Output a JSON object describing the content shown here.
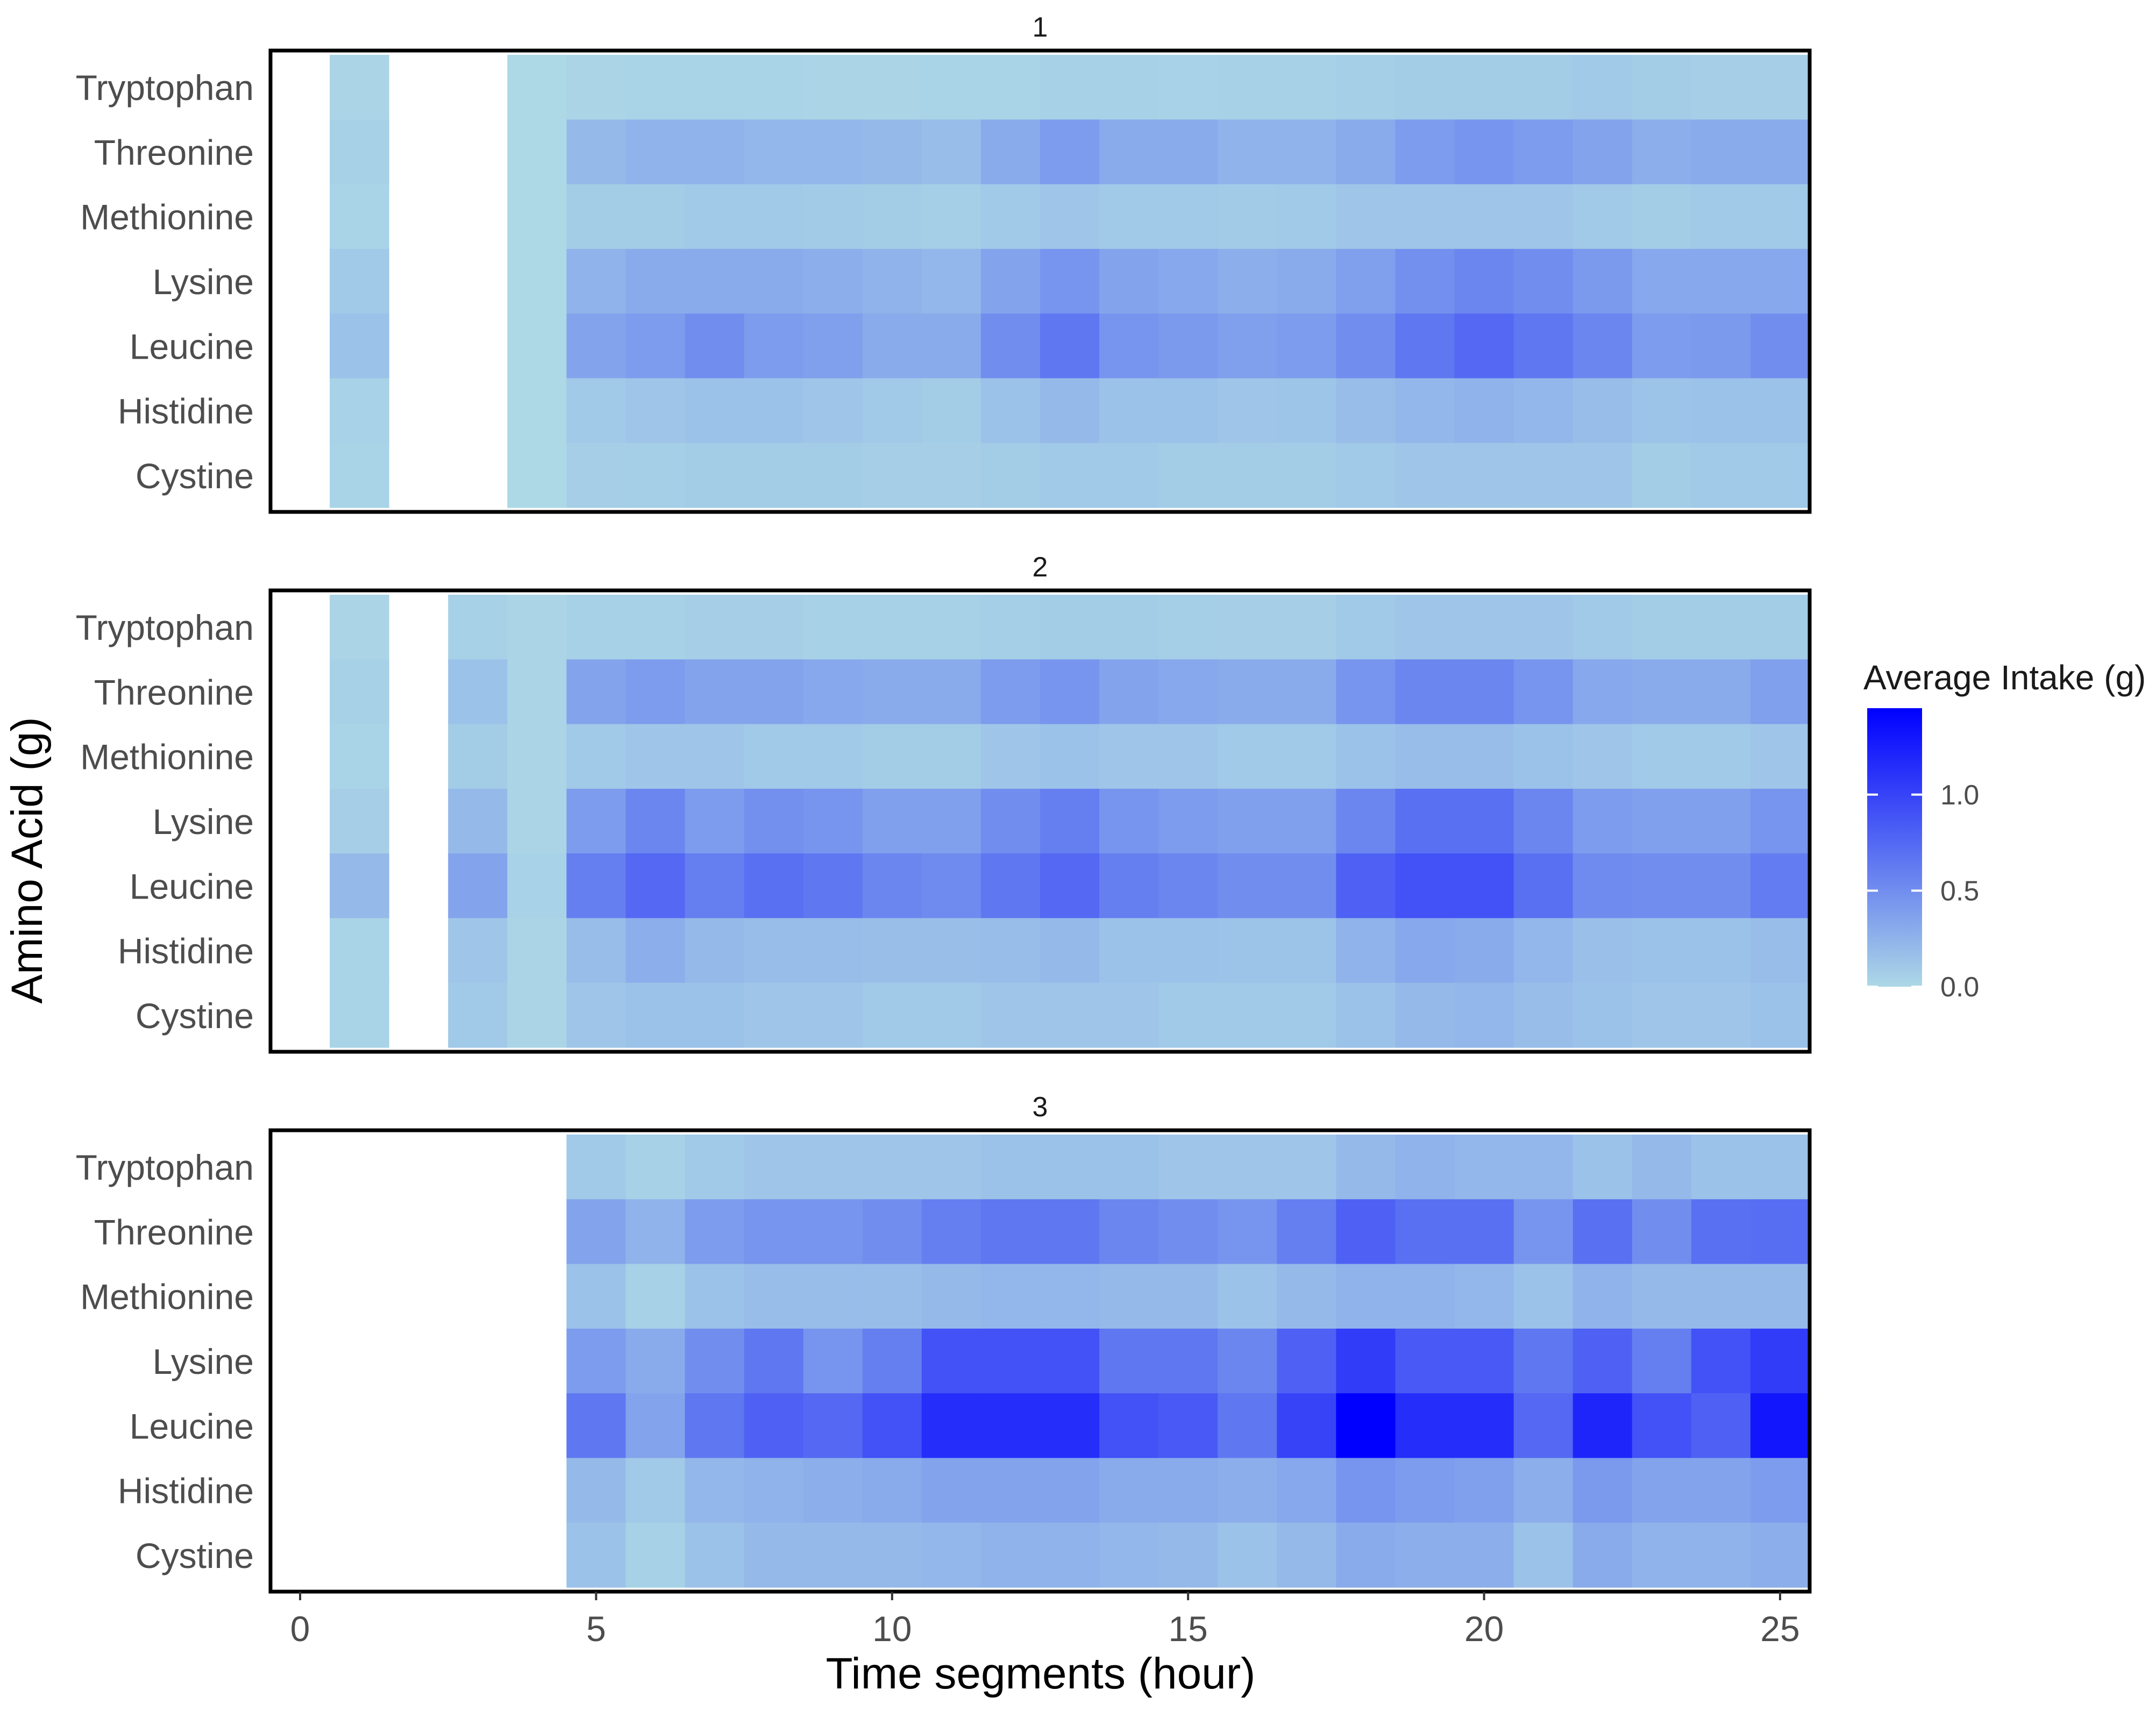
{
  "chart_data": {
    "type": "heatmap",
    "title": "",
    "xlabel": "Time segments (hour)",
    "ylabel": "Amino Acid (g)",
    "xlim": [
      -0.5,
      25.5
    ],
    "x_ticks": [
      0,
      5,
      10,
      15,
      20,
      25
    ],
    "x_tick_labels": [
      "0",
      "5",
      "10",
      "15",
      "20",
      "25"
    ],
    "x_segments": [
      1,
      2,
      3,
      4,
      5,
      6,
      7,
      8,
      9,
      10,
      11,
      12,
      13,
      14,
      15,
      16,
      17,
      18,
      19,
      20,
      21,
      22,
      23,
      24,
      25
    ],
    "categories": [
      "Tryptophan",
      "Threonine",
      "Methionine",
      "Lysine",
      "Leucine",
      "Histidine",
      "Cystine"
    ],
    "legend": {
      "title": "Average Intake (g)",
      "position": "right",
      "min": 0.0,
      "max": 1.45,
      "ticks": [
        0.0,
        0.5,
        1.0
      ],
      "tick_labels": [
        "0.0",
        "0.5",
        "1.0"
      ],
      "low_color": "#add8e6",
      "high_color": "#0000ff"
    },
    "panels": [
      {
        "label": "1",
        "values": {
          "Tryptophan": [
            0.02,
            null,
            null,
            0.0,
            0.02,
            0.03,
            0.03,
            0.03,
            0.02,
            0.02,
            0.03,
            0.03,
            0.05,
            0.05,
            0.04,
            0.05,
            0.05,
            0.07,
            0.08,
            0.08,
            0.08,
            0.1,
            0.08,
            0.06,
            0.06
          ],
          "Threonine": [
            0.05,
            null,
            null,
            0.0,
            0.2,
            0.25,
            0.25,
            0.22,
            0.22,
            0.2,
            0.18,
            0.3,
            0.4,
            0.3,
            0.3,
            0.25,
            0.25,
            0.3,
            0.4,
            0.45,
            0.4,
            0.35,
            0.28,
            0.3,
            0.3
          ],
          "Methionine": [
            0.03,
            null,
            null,
            0.0,
            0.08,
            0.08,
            0.1,
            0.1,
            0.09,
            0.08,
            0.07,
            0.1,
            0.12,
            0.1,
            0.1,
            0.09,
            0.1,
            0.12,
            0.12,
            0.12,
            0.12,
            0.1,
            0.08,
            0.1,
            0.1
          ],
          "Lysine": [
            0.1,
            null,
            null,
            0.0,
            0.25,
            0.3,
            0.3,
            0.3,
            0.28,
            0.25,
            0.22,
            0.35,
            0.45,
            0.35,
            0.32,
            0.28,
            0.3,
            0.38,
            0.48,
            0.55,
            0.5,
            0.42,
            0.32,
            0.32,
            0.32
          ],
          "Leucine": [
            0.15,
            null,
            null,
            0.0,
            0.35,
            0.4,
            0.5,
            0.4,
            0.38,
            0.3,
            0.3,
            0.5,
            0.65,
            0.45,
            0.42,
            0.38,
            0.4,
            0.5,
            0.65,
            0.75,
            0.65,
            0.55,
            0.4,
            0.42,
            0.5
          ],
          "Histidine": [
            0.04,
            null,
            null,
            0.0,
            0.1,
            0.12,
            0.15,
            0.15,
            0.12,
            0.1,
            0.08,
            0.15,
            0.2,
            0.15,
            0.15,
            0.12,
            0.13,
            0.18,
            0.22,
            0.25,
            0.22,
            0.18,
            0.14,
            0.15,
            0.15
          ],
          "Cystine": [
            0.03,
            null,
            null,
            0.0,
            0.06,
            0.07,
            0.08,
            0.08,
            0.08,
            0.06,
            0.06,
            0.08,
            0.1,
            0.1,
            0.08,
            0.08,
            0.08,
            0.1,
            0.12,
            0.12,
            0.12,
            0.12,
            0.08,
            0.1,
            0.1
          ]
        }
      },
      {
        "label": "2",
        "values": {
          "Tryptophan": [
            0.02,
            null,
            0.05,
            0.02,
            0.05,
            0.05,
            0.06,
            0.06,
            0.05,
            0.05,
            0.05,
            0.07,
            0.08,
            0.08,
            0.07,
            0.06,
            0.06,
            0.1,
            0.12,
            0.12,
            0.12,
            0.1,
            0.08,
            0.08,
            0.08
          ],
          "Threonine": [
            0.05,
            null,
            0.15,
            0.02,
            0.35,
            0.4,
            0.35,
            0.35,
            0.32,
            0.3,
            0.3,
            0.4,
            0.45,
            0.35,
            0.32,
            0.3,
            0.3,
            0.45,
            0.55,
            0.55,
            0.45,
            0.32,
            0.3,
            0.3,
            0.38
          ],
          "Methionine": [
            0.03,
            null,
            0.08,
            0.02,
            0.1,
            0.12,
            0.12,
            0.1,
            0.1,
            0.08,
            0.08,
            0.12,
            0.15,
            0.12,
            0.12,
            0.1,
            0.1,
            0.15,
            0.18,
            0.18,
            0.15,
            0.12,
            0.1,
            0.1,
            0.12
          ],
          "Lysine": [
            0.06,
            null,
            0.2,
            0.02,
            0.4,
            0.55,
            0.4,
            0.48,
            0.45,
            0.38,
            0.38,
            0.5,
            0.6,
            0.45,
            0.4,
            0.38,
            0.38,
            0.55,
            0.7,
            0.7,
            0.55,
            0.4,
            0.38,
            0.38,
            0.45
          ],
          "Leucine": [
            0.2,
            null,
            0.35,
            0.04,
            0.6,
            0.75,
            0.6,
            0.7,
            0.65,
            0.55,
            0.52,
            0.65,
            0.75,
            0.6,
            0.55,
            0.5,
            0.5,
            0.8,
            0.9,
            0.9,
            0.7,
            0.52,
            0.5,
            0.5,
            0.62
          ],
          "Histidine": [
            0.03,
            null,
            0.12,
            0.02,
            0.18,
            0.28,
            0.2,
            0.18,
            0.18,
            0.17,
            0.17,
            0.18,
            0.2,
            0.15,
            0.15,
            0.14,
            0.14,
            0.25,
            0.32,
            0.3,
            0.22,
            0.16,
            0.15,
            0.15,
            0.18
          ],
          "Cystine": [
            0.03,
            null,
            0.1,
            0.02,
            0.12,
            0.15,
            0.15,
            0.12,
            0.12,
            0.1,
            0.1,
            0.12,
            0.12,
            0.12,
            0.1,
            0.1,
            0.1,
            0.15,
            0.2,
            0.22,
            0.18,
            0.15,
            0.12,
            0.12,
            0.15
          ]
        }
      },
      {
        "label": "3",
        "values": {
          "Tryptophan": [
            null,
            null,
            null,
            null,
            0.1,
            0.05,
            0.1,
            0.12,
            0.12,
            0.12,
            0.12,
            0.15,
            0.15,
            0.15,
            0.12,
            0.12,
            0.12,
            0.2,
            0.25,
            0.22,
            0.22,
            0.15,
            0.2,
            0.15,
            0.15
          ],
          "Threonine": [
            null,
            null,
            null,
            null,
            0.35,
            0.25,
            0.4,
            0.45,
            0.45,
            0.5,
            0.6,
            0.65,
            0.65,
            0.55,
            0.5,
            0.45,
            0.6,
            0.8,
            0.7,
            0.7,
            0.45,
            0.7,
            0.5,
            0.7,
            0.72
          ],
          "Methionine": [
            null,
            null,
            null,
            null,
            0.15,
            0.05,
            0.15,
            0.18,
            0.18,
            0.18,
            0.2,
            0.22,
            0.22,
            0.2,
            0.2,
            0.15,
            0.2,
            0.25,
            0.25,
            0.22,
            0.15,
            0.25,
            0.2,
            0.2,
            0.2
          ],
          "Lysine": [
            null,
            null,
            null,
            null,
            0.4,
            0.3,
            0.5,
            0.65,
            0.45,
            0.6,
            0.9,
            0.9,
            0.9,
            0.65,
            0.65,
            0.55,
            0.8,
            1.05,
            0.85,
            0.85,
            0.65,
            0.8,
            0.6,
            0.9,
            1.05
          ],
          "Leucine": [
            null,
            null,
            null,
            null,
            0.65,
            0.35,
            0.65,
            0.8,
            0.75,
            0.9,
            1.15,
            1.15,
            1.15,
            0.9,
            0.85,
            0.65,
            1.0,
            1.45,
            1.15,
            1.15,
            0.75,
            1.2,
            0.9,
            0.8,
            1.3
          ],
          "Histidine": [
            null,
            null,
            null,
            null,
            0.2,
            0.1,
            0.22,
            0.25,
            0.28,
            0.3,
            0.35,
            0.35,
            0.35,
            0.3,
            0.3,
            0.28,
            0.32,
            0.45,
            0.4,
            0.38,
            0.28,
            0.42,
            0.35,
            0.35,
            0.4
          ],
          "Cystine": [
            null,
            null,
            null,
            null,
            0.15,
            0.05,
            0.15,
            0.2,
            0.2,
            0.2,
            0.22,
            0.25,
            0.25,
            0.22,
            0.2,
            0.15,
            0.2,
            0.3,
            0.28,
            0.28,
            0.15,
            0.3,
            0.25,
            0.25,
            0.28
          ]
        }
      }
    ]
  }
}
